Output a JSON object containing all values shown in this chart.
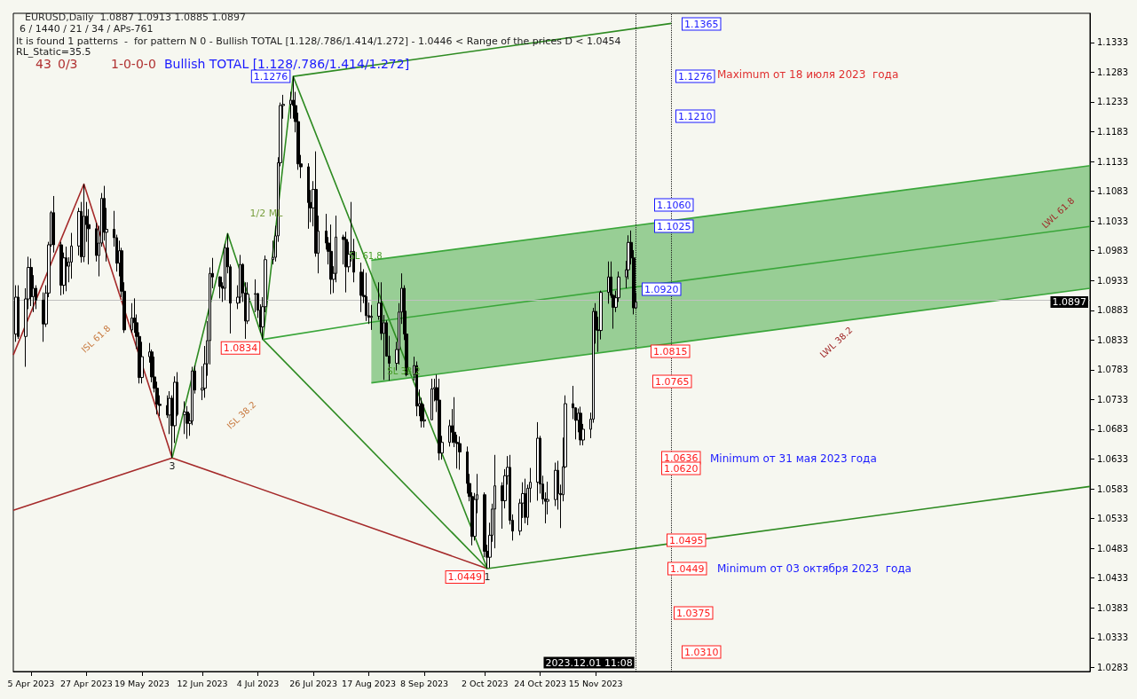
{
  "chart_data": {
    "type": "candlestick",
    "title": "EURUSD,Daily  1.0887 1.0913 1.0885 1.0897",
    "subtitle": "6 / 1440 / 21 / 34 / APs-761",
    "color": "#000000",
    "x": [
      "2023-03-30",
      "2023-03-31",
      "2023-04-03",
      "2023-04-04",
      "2023-04-05",
      "2023-04-06",
      "2023-04-07",
      "2023-04-10",
      "2023-04-11",
      "2023-04-12",
      "2023-04-13",
      "2023-04-14",
      "2023-04-17",
      "2023-04-18",
      "2023-04-19",
      "2023-04-20",
      "2023-04-21",
      "2023-04-24",
      "2023-04-25",
      "2023-04-26",
      "2023-04-27",
      "2023-04-28",
      "2023-05-01",
      "2023-05-02",
      "2023-05-03",
      "2023-05-04",
      "2023-05-05",
      "2023-05-08",
      "2023-05-09",
      "2023-05-10",
      "2023-05-11",
      "2023-05-12",
      "2023-05-15",
      "2023-05-16",
      "2023-05-17",
      "2023-05-18",
      "2023-05-19",
      "2023-05-22",
      "2023-05-23",
      "2023-05-24",
      "2023-05-25",
      "2023-05-26",
      "2023-05-29",
      "2023-05-30",
      "2023-05-31",
      "2023-06-01",
      "2023-06-02",
      "2023-06-05",
      "2023-06-06",
      "2023-06-07",
      "2023-06-08",
      "2023-06-09",
      "2023-06-12",
      "2023-06-13",
      "2023-06-14",
      "2023-06-15",
      "2023-06-16",
      "2023-06-19",
      "2023-06-20",
      "2023-06-21",
      "2023-06-22",
      "2023-06-23",
      "2023-06-26",
      "2023-06-27",
      "2023-06-28",
      "2023-06-29",
      "2023-06-30",
      "2023-07-03",
      "2023-07-04",
      "2023-07-05",
      "2023-07-06",
      "2023-07-07",
      "2023-07-10",
      "2023-07-11",
      "2023-07-12",
      "2023-07-13",
      "2023-07-14",
      "2023-07-17",
      "2023-07-18",
      "2023-07-19",
      "2023-07-20",
      "2023-07-21",
      "2023-07-24",
      "2023-07-25",
      "2023-07-26",
      "2023-07-27",
      "2023-07-28",
      "2023-07-31",
      "2023-08-01",
      "2023-08-02",
      "2023-08-03",
      "2023-08-04",
      "2023-08-07",
      "2023-08-08",
      "2023-08-09",
      "2023-08-10",
      "2023-08-11",
      "2023-08-14",
      "2023-08-15",
      "2023-08-16",
      "2023-08-17",
      "2023-08-18",
      "2023-08-21",
      "2023-08-22",
      "2023-08-23",
      "2023-08-24",
      "2023-08-25",
      "2023-08-28",
      "2023-08-29",
      "2023-08-30",
      "2023-08-31",
      "2023-09-01",
      "2023-09-04",
      "2023-09-05",
      "2023-09-06",
      "2023-09-07",
      "2023-09-08",
      "2023-09-11",
      "2023-09-12",
      "2023-09-13",
      "2023-09-14",
      "2023-09-15",
      "2023-09-18",
      "2023-09-19",
      "2023-09-20",
      "2023-09-21",
      "2023-09-22",
      "2023-09-25",
      "2023-09-26",
      "2023-09-27",
      "2023-09-28",
      "2023-09-29",
      "2023-10-02",
      "2023-10-03",
      "2023-10-04",
      "2023-10-05",
      "2023-10-06",
      "2023-10-09",
      "2023-10-10",
      "2023-10-11",
      "2023-10-12",
      "2023-10-13",
      "2023-10-16",
      "2023-10-17",
      "2023-10-18",
      "2023-10-19",
      "2023-10-20",
      "2023-10-23",
      "2023-10-24",
      "2023-10-25",
      "2023-10-26",
      "2023-10-27",
      "2023-10-30",
      "2023-10-31",
      "2023-11-01",
      "2023-11-02",
      "2023-11-03",
      "2023-11-06",
      "2023-11-07",
      "2023-11-08",
      "2023-11-09",
      "2023-11-10",
      "2023-11-13",
      "2023-11-14",
      "2023-11-15",
      "2023-11-16",
      "2023-11-17",
      "2023-11-20",
      "2023-11-21",
      "2023-11-22",
      "2023-11-23",
      "2023-11-24",
      "2023-11-27",
      "2023-11-28",
      "2023-11-29",
      "2023-11-30",
      "2023-12-01"
    ],
    "ohlc": [
      [
        1.0843,
        1.0925,
        1.083,
        1.0905
      ],
      [
        1.0905,
        1.0925,
        1.0835,
        1.0839
      ],
      [
        1.0839,
        1.092,
        1.0788,
        1.0902
      ],
      [
        1.0902,
        1.0973,
        1.0885,
        1.0955
      ],
      [
        1.0955,
        1.097,
        1.089,
        1.0906
      ],
      [
        1.0906,
        1.0942,
        1.088,
        1.092
      ],
      [
        1.092,
        1.0925,
        1.0885,
        1.09
      ],
      [
        1.09,
        1.0913,
        1.083,
        1.086
      ],
      [
        1.086,
        1.0925,
        1.0855,
        1.0912
      ],
      [
        1.0912,
        1.0998,
        1.0905,
        1.0993
      ],
      [
        1.0993,
        1.105,
        1.099,
        1.1047
      ],
      [
        1.1047,
        1.1075,
        1.098,
        1.0993
      ],
      [
        1.0993,
        1.0998,
        1.0908,
        1.0925
      ],
      [
        1.0925,
        1.098,
        1.091,
        1.0971
      ],
      [
        1.0971,
        1.099,
        1.0915,
        1.0957
      ],
      [
        1.0957,
        1.0972,
        1.093,
        1.0964
      ],
      [
        1.0964,
        1.1013,
        1.0936,
        1.0991
      ],
      [
        1.0991,
        1.1055,
        1.0975,
        1.1049
      ],
      [
        1.1049,
        1.1065,
        1.0963,
        1.0973
      ],
      [
        1.0973,
        1.1095,
        1.0964,
        1.1041
      ],
      [
        1.1041,
        1.1065,
        1.0998,
        1.1027
      ],
      [
        1.1027,
        1.1053,
        1.096,
        1.102
      ],
      [
        1.102,
        1.103,
        1.0965,
        1.0975
      ],
      [
        1.0975,
        1.1025,
        1.094,
        1.0996
      ],
      [
        1.0996,
        1.108,
        1.099,
        1.1071
      ],
      [
        1.1071,
        1.1092,
        1.1,
        1.1014
      ],
      [
        1.1014,
        1.1055,
        1.0965,
        1.1019
      ],
      [
        1.1019,
        1.105,
        1.099,
        1.1005
      ],
      [
        1.1005,
        1.101,
        1.0948,
        1.0962
      ],
      [
        1.0962,
        1.1,
        1.094,
        1.0983
      ],
      [
        1.0983,
        1.0988,
        1.0905,
        1.0915
      ],
      [
        1.0915,
        1.093,
        1.0845,
        1.085
      ],
      [
        1.085,
        1.0895,
        1.0845,
        1.087
      ],
      [
        1.087,
        1.0903,
        1.0845,
        1.0862
      ],
      [
        1.0862,
        1.0876,
        1.0818,
        1.0839
      ],
      [
        1.0839,
        1.0846,
        1.076,
        1.077
      ],
      [
        1.077,
        1.083,
        1.076,
        1.0805
      ],
      [
        1.0805,
        1.0828,
        1.0795,
        1.0813
      ],
      [
        1.0813,
        1.0817,
        1.0762,
        1.0771
      ],
      [
        1.0771,
        1.0805,
        1.0745,
        1.0752
      ],
      [
        1.0752,
        1.0763,
        1.0708,
        1.0725
      ],
      [
        1.0725,
        1.074,
        1.0705,
        1.0723
      ],
      [
        1.0723,
        1.074,
        1.0702,
        1.0707
      ],
      [
        1.0707,
        1.0747,
        1.0675,
        1.0735
      ],
      [
        1.0735,
        1.074,
        1.0635,
        1.0689
      ],
      [
        1.0689,
        1.0772,
        1.066,
        1.0762
      ],
      [
        1.0762,
        1.0779,
        1.0705,
        1.0708
      ],
      [
        1.0708,
        1.073,
        1.0675,
        1.0712
      ],
      [
        1.0712,
        1.0722,
        1.0667,
        1.0693
      ],
      [
        1.0693,
        1.071,
        1.0672,
        1.0697
      ],
      [
        1.0697,
        1.0788,
        1.069,
        1.0781
      ],
      [
        1.0781,
        1.079,
        1.0743,
        1.0749
      ],
      [
        1.0749,
        1.0789,
        1.0732,
        1.0752
      ],
      [
        1.0752,
        1.0823,
        1.0736,
        1.0793
      ],
      [
        1.0793,
        1.0865,
        1.0773,
        1.0832
      ],
      [
        1.0832,
        1.0955,
        1.0792,
        1.0945
      ],
      [
        1.0945,
        1.0971,
        1.092,
        1.0939
      ],
      [
        1.0939,
        1.094,
        1.0903,
        1.0923
      ],
      [
        1.0923,
        1.093,
        1.0897,
        1.092
      ],
      [
        1.092,
        1.0995,
        1.09,
        1.0988
      ],
      [
        1.0988,
        1.1012,
        1.0945,
        1.0956
      ],
      [
        1.0956,
        1.096,
        1.0844,
        1.0895
      ],
      [
        1.0895,
        1.0925,
        1.0885,
        1.0905
      ],
      [
        1.0905,
        1.0976,
        1.0895,
        1.096
      ],
      [
        1.096,
        1.0962,
        1.0897,
        1.0912
      ],
      [
        1.0912,
        1.093,
        1.0835,
        1.0865
      ],
      [
        1.0865,
        1.093,
        1.086,
        1.091
      ],
      [
        1.091,
        1.0935,
        1.088,
        1.0911
      ],
      [
        1.0911,
        1.0912,
        1.087,
        1.0883
      ],
      [
        1.0883,
        1.0893,
        1.0845,
        1.0855
      ],
      [
        1.0855,
        1.0905,
        1.0834,
        1.0889
      ],
      [
        1.0889,
        1.0975,
        1.088,
        1.0968
      ],
      [
        1.0968,
        1.1,
        1.096,
        1.0972
      ],
      [
        1.0972,
        1.1025,
        1.0965,
        1.1008
      ],
      [
        1.1008,
        1.114,
        1.0998,
        1.1131
      ],
      [
        1.1131,
        1.1232,
        1.1125,
        1.1227
      ],
      [
        1.1227,
        1.1245,
        1.1205,
        1.1229
      ],
      [
        1.1229,
        1.125,
        1.1205,
        1.1236
      ],
      [
        1.1236,
        1.1276,
        1.1205,
        1.1227
      ],
      [
        1.1227,
        1.125,
        1.1182,
        1.12
      ],
      [
        1.12,
        1.1215,
        1.1119,
        1.1129
      ],
      [
        1.1129,
        1.1144,
        1.1105,
        1.1124
      ],
      [
        1.1124,
        1.113,
        1.102,
        1.1064
      ],
      [
        1.1064,
        1.1085,
        1.1031,
        1.1055
      ],
      [
        1.1055,
        1.11,
        1.1024,
        1.1086
      ],
      [
        1.1086,
        1.115,
        1.0973,
        1.0979
      ],
      [
        1.0979,
        1.1042,
        1.0945,
        1.1016
      ],
      [
        1.1016,
        1.1045,
        1.0985,
        1.0996
      ],
      [
        1.0996,
        1.1006,
        1.096,
        1.0982
      ],
      [
        1.0982,
        1.1027,
        1.091,
        1.0935
      ],
      [
        1.0935,
        1.0957,
        1.0912,
        1.0945
      ],
      [
        1.0945,
        1.1042,
        1.093,
        1.1006
      ],
      [
        1.1006,
        1.101,
        1.096,
        1.1002
      ],
      [
        1.1002,
        1.1015,
        1.0913,
        1.0956
      ],
      [
        1.0956,
        1.0998,
        1.0947,
        1.0977
      ],
      [
        1.0977,
        1.1065,
        1.0965,
        1.0982
      ],
      [
        1.0982,
        1.1003,
        1.093,
        1.0947
      ],
      [
        1.0947,
        1.0963,
        1.088,
        1.0908
      ],
      [
        1.0908,
        1.0952,
        1.0895,
        1.0906
      ],
      [
        1.0906,
        1.0946,
        1.0865,
        1.0874
      ],
      [
        1.0874,
        1.0896,
        1.086,
        1.0871
      ],
      [
        1.0871,
        1.0892,
        1.085,
        1.0873
      ],
      [
        1.0873,
        1.093,
        1.0867,
        1.0895
      ],
      [
        1.0895,
        1.093,
        1.0833,
        1.0844
      ],
      [
        1.0844,
        1.0875,
        1.0766,
        1.0862
      ],
      [
        1.0862,
        1.0866,
        1.0805,
        1.0806
      ],
      [
        1.0806,
        1.084,
        1.0765,
        1.0794
      ],
      [
        1.0794,
        1.083,
        1.0782,
        1.0817
      ],
      [
        1.0817,
        1.0895,
        1.0792,
        1.088
      ],
      [
        1.088,
        1.0945,
        1.086,
        1.092
      ],
      [
        1.092,
        1.0925,
        1.0833,
        1.0843
      ],
      [
        1.0843,
        1.0882,
        1.0772,
        1.0775
      ],
      [
        1.0775,
        1.0805,
        1.0765,
        1.079
      ],
      [
        1.079,
        1.0797,
        1.0705,
        1.0722
      ],
      [
        1.0722,
        1.075,
        1.0705,
        1.0726
      ],
      [
        1.0726,
        1.0736,
        1.0686,
        1.0697
      ],
      [
        1.0697,
        1.0725,
        1.0686,
        1.0699
      ],
      [
        1.0699,
        1.0768,
        1.0699,
        1.0751
      ],
      [
        1.0751,
        1.0768,
        1.073,
        1.0753
      ],
      [
        1.0753,
        1.0775,
        1.0712,
        1.0732
      ],
      [
        1.0732,
        1.0768,
        1.0631,
        1.0643
      ],
      [
        1.0643,
        1.0672,
        1.0632,
        1.0661
      ],
      [
        1.0661,
        1.0699,
        1.0654,
        1.0689
      ],
      [
        1.0689,
        1.0717,
        1.066,
        1.0678
      ],
      [
        1.0678,
        1.0737,
        1.0653,
        1.0661
      ],
      [
        1.0661,
        1.0674,
        1.0617,
        1.0659
      ],
      [
        1.0659,
        1.0671,
        1.0615,
        1.0645
      ],
      [
        1.0645,
        1.0654,
        1.0575,
        1.0592
      ],
      [
        1.0592,
        1.0608,
        1.0562,
        1.057
      ],
      [
        1.057,
        1.0577,
        1.0488,
        1.0503
      ],
      [
        1.0503,
        1.0576,
        1.0496,
        1.0565
      ],
      [
        1.0565,
        1.0608,
        1.0542,
        1.0573
      ],
      [
        1.0573,
        1.0577,
        1.0468,
        1.0478
      ],
      [
        1.0478,
        1.0489,
        1.0449,
        1.0468
      ],
      [
        1.0468,
        1.0526,
        1.045,
        1.0505
      ],
      [
        1.0505,
        1.0558,
        1.0494,
        1.0549
      ],
      [
        1.0549,
        1.064,
        1.0483,
        1.0588
      ],
      [
        1.0588,
        1.0594,
        1.0516,
        1.0563
      ],
      [
        1.0563,
        1.0616,
        1.055,
        1.0605
      ],
      [
        1.0605,
        1.0638,
        1.059,
        1.0619
      ],
      [
        1.0619,
        1.064,
        1.0523,
        1.053
      ],
      [
        1.053,
        1.054,
        1.0496,
        1.0512
      ],
      [
        1.0512,
        1.0566,
        1.0505,
        1.0559
      ],
      [
        1.0559,
        1.0594,
        1.0534,
        1.0575
      ],
      [
        1.0575,
        1.06,
        1.0525,
        1.0535
      ],
      [
        1.0535,
        1.059,
        1.0522,
        1.0584
      ],
      [
        1.0584,
        1.0618,
        1.056,
        1.0594
      ],
      [
        1.0594,
        1.0695,
        1.0563,
        1.0668
      ],
      [
        1.0668,
        1.0672,
        1.0575,
        1.0591
      ],
      [
        1.0591,
        1.0605,
        1.0557,
        1.0566
      ],
      [
        1.0566,
        1.0577,
        1.0525,
        1.0562
      ],
      [
        1.0562,
        1.0595,
        1.054,
        1.0565
      ],
      [
        1.0565,
        1.0627,
        1.0554,
        1.0614
      ],
      [
        1.0614,
        1.063,
        1.0548,
        1.0575
      ],
      [
        1.0575,
        1.059,
        1.0517,
        1.0573
      ],
      [
        1.0573,
        1.0669,
        1.0562,
        1.062
      ],
      [
        1.062,
        1.074,
        1.0618,
        1.0726
      ],
      [
        1.0726,
        1.0756,
        1.07,
        1.0719
      ],
      [
        1.0719,
        1.072,
        1.0666,
        1.0698
      ],
      [
        1.0698,
        1.0718,
        1.0678,
        1.071
      ],
      [
        1.071,
        1.0721,
        1.0656,
        1.0665
      ],
      [
        1.0665,
        1.0692,
        1.0656,
        1.0683
      ],
      [
        1.0683,
        1.0711,
        1.0668,
        1.07
      ],
      [
        1.07,
        1.0887,
        1.0694,
        1.0881
      ],
      [
        1.0881,
        1.0895,
        1.0827,
        1.085
      ],
      [
        1.085,
        1.0872,
        1.0813,
        1.0849
      ],
      [
        1.0849,
        1.0916,
        1.0834,
        1.0913
      ],
      [
        1.0913,
        1.0965,
        1.0894,
        1.0939
      ],
      [
        1.0939,
        1.0965,
        1.0904,
        1.0908
      ],
      [
        1.0908,
        1.091,
        1.0852,
        1.0888
      ],
      [
        1.0888,
        1.0916,
        1.088,
        1.0904
      ],
      [
        1.0904,
        1.0948,
        1.0897,
        1.0939
      ],
      [
        1.0939,
        1.0966,
        1.092,
        1.0951
      ],
      [
        1.0951,
        1.1009,
        1.0935,
        1.0997
      ],
      [
        1.0997,
        1.1017,
        1.096,
        1.0971
      ],
      [
        1.0971,
        1.0984,
        1.0876,
        1.0887
      ],
      [
        1.0887,
        1.0913,
        1.0885,
        1.0897
      ]
    ],
    "series": [
      {
        "type": "line",
        "color": "#a52a2a",
        "x": [
          "2023-03-29",
          "2023-04-26",
          "2023-05-31"
        ],
        "values": [
          1.0808,
          1.1095,
          1.0635
        ]
      },
      {
        "type": "line",
        "color": "#a52a2a",
        "x": [
          "2023-03-29",
          "2023-05-31",
          "2023-10-03"
        ],
        "values": [
          1.0547,
          1.0635,
          1.0449
        ]
      },
      {
        "type": "line",
        "color": "#2e8b22",
        "x": [
          "2023-05-31",
          "2023-06-22",
          "2023-07-06",
          "2023-07-18",
          "2023-10-03"
        ],
        "values": [
          1.0635,
          1.1012,
          1.0834,
          1.1276,
          1.0449
        ]
      },
      {
        "type": "line",
        "color": "#2e8b22",
        "x": [
          "2023-07-06",
          "2023-10-03"
        ],
        "values": [
          1.0834,
          1.0449
        ]
      },
      {
        "type": "line",
        "color": "#2e8b22",
        "x": [
          "2023-07-18",
          "2023-12-15"
        ],
        "values": [
          1.1276,
          1.1365
        ]
      },
      {
        "type": "line",
        "color": "#3aa63a",
        "x": [
          "2023-07-06",
          "2023-08-18",
          "2024-05-29"
        ],
        "values": [
          1.0834,
          1.0863,
          1.1024
        ],
        "lower": [
          null,
          1.0761,
          1.092
        ],
        "upper": [
          null,
          1.0967,
          1.1126
        ]
      },
      {
        "type": "line",
        "color": "#2e8b22",
        "x": [
          "2023-10-03",
          "2024-05-29"
        ],
        "values": [
          1.0449,
          1.0587
        ]
      }
    ],
    "xlim": [
      "2023-03-29",
      "2024-05-29"
    ],
    "xticks": [
      {
        "value": "2023-04-05",
        "label": "5 Apr 2023"
      },
      {
        "value": "2023-04-27",
        "label": "27 Apr 2023"
      },
      {
        "value": "2023-05-19",
        "label": "19 May 2023"
      },
      {
        "value": "2023-06-12",
        "label": "12 Jun 2023"
      },
      {
        "value": "2023-07-04",
        "label": "4 Jul 2023"
      },
      {
        "value": "2023-07-26",
        "label": "26 Jul 2023"
      },
      {
        "value": "2023-08-17",
        "label": "17 Aug 2023"
      },
      {
        "value": "2023-09-08",
        "label": "8 Sep 2023"
      },
      {
        "value": "2023-10-02",
        "label": "2 Oct 2023"
      },
      {
        "value": "2023-10-24",
        "label": "24 Oct 2023"
      },
      {
        "value": "2023-11-15",
        "label": "15 Nov 2023"
      }
    ],
    "ylim": [
      1.0276,
      1.1382
    ],
    "yticks": [
      1.0283,
      1.0333,
      1.0383,
      1.0433,
      1.0483,
      1.0533,
      1.0583,
      1.0633,
      1.0683,
      1.0733,
      1.0783,
      1.0833,
      1.0883,
      1.0933,
      1.0983,
      1.1033,
      1.1083,
      1.1133,
      1.1183,
      1.1233,
      1.1283,
      1.1333
    ],
    "ref_lines": [
      {
        "axis": "y",
        "value": 1.0897,
        "label": "1.0897",
        "color": "#c0c0c0"
      },
      {
        "axis": "x",
        "value": "2023-12-01",
        "label": "2023.12.01 11:08",
        "color": "#1a1a1a",
        "line_style": "dotted"
      },
      {
        "axis": "x",
        "value": "2023-12-15",
        "color": "#1a1a1a",
        "line_style": "dotted"
      }
    ],
    "annotations": [
      "It is found 1 patterns  -  for pattern N 0 - Bullish TOTAL [1.128/.786/1.414/1.272] - 1.0446 < Range of the prices D < 1.0454",
      "RL_Static=35.5",
      "43",
      "0/3",
      "1-0-0-0",
      "Bullish TOTAL [1.128/.786/1.414/1.272]",
      "1.1365",
      "1.1276",
      "1.1210",
      "1.1060",
      "1.1025",
      "1.0920",
      "1.0815",
      "1.0765",
      "1.0636",
      "1.0620",
      "1.0495",
      "1.0449",
      "1.0375",
      "1.0310",
      "1/2 ML",
      "ISL 61.8",
      "ISL 38.2",
      "SL 61.8",
      "SL 38.2",
      "LWL 61.8",
      "LWL 38.2",
      "Maximum от 18 июля 2023  года",
      "Minimum от 31 мая 2023 года",
      "Minimum от 03 октября 2023  года",
      {
        "text": "1.1276",
        "x": "2023-07-18",
        "y": 1.1276
      },
      {
        "text": "1.0834",
        "x": "2023-07-06",
        "y": 1.0834
      },
      {
        "text": "1.0449",
        "x": "2023-10-03",
        "y": 1.0449
      },
      {
        "text": "3",
        "x": "2023-05-31",
        "y": 1.0635
      },
      {
        "text": "1",
        "x": "2023-10-03",
        "y": 1.0449
      }
    ]
  }
}
